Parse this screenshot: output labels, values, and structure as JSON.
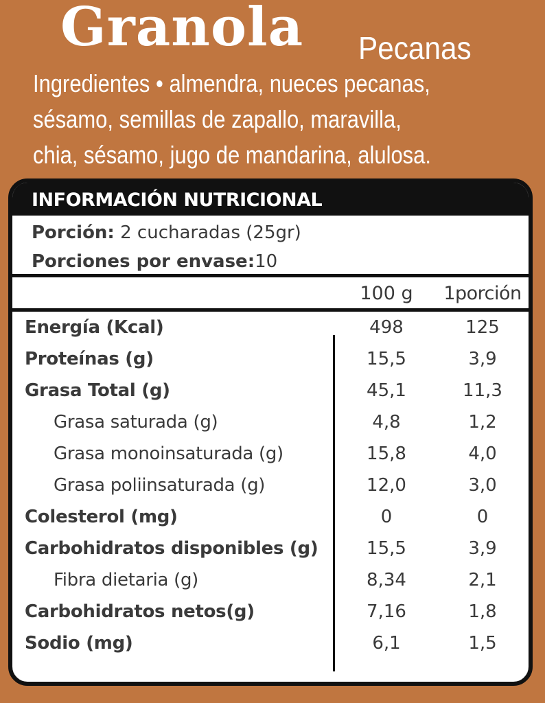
{
  "header": {
    "title": "Granola",
    "subtitle": "Pecanas"
  },
  "ingredients": {
    "lines": [
      "Ingredientes • almendra, nueces pecanas,",
      "sésamo, semillas de zapallo, maravilla,",
      "chia, sésamo, jugo de mandarina, alulosa."
    ]
  },
  "nutrition": {
    "heading": "INFORMACIÓN NUTRICIONAL",
    "portion_label": "Porción:",
    "portion_value": "2 cucharadas (25gr)",
    "servings_label": "Porciones por envase:",
    "servings_value": "10",
    "col_100g": "100 g",
    "col_portion": "1porción",
    "rows": [
      {
        "name": "Energía (Kcal)",
        "v100": "498",
        "vport": "125"
      },
      {
        "name": "Proteínas (g)",
        "v100": "15,5",
        "vport": "3,9"
      },
      {
        "name": "Grasa Total (g)",
        "v100": "45,1",
        "vport": "11,3"
      },
      {
        "name": "Grasa saturada (g)",
        "v100": "4,8",
        "vport": "1,2"
      },
      {
        "name": "Grasa monoinsaturada (g)",
        "v100": "15,8",
        "vport": "4,0"
      },
      {
        "name": "Grasa poliinsaturada (g)",
        "v100": "12,0",
        "vport": "3,0"
      },
      {
        "name": "Colesterol (mg)",
        "v100": "0",
        "vport": "0"
      },
      {
        "name": "Carbohidratos disponibles (g)",
        "v100": "15,5",
        "vport": "3,9"
      },
      {
        "name": "Fibra dietaria (g)",
        "v100": "8,34",
        "vport": "2,1"
      },
      {
        "name": "Carbohidratos netos(g)",
        "v100": "7,16",
        "vport": "1,8"
      },
      {
        "name": "Sodio (mg)",
        "v100": "6,1",
        "vport": "1,5"
      }
    ]
  },
  "colors": {
    "background": "#c07640",
    "panel": "#ffffff",
    "border": "#111111",
    "text": "#3a3a3a"
  }
}
